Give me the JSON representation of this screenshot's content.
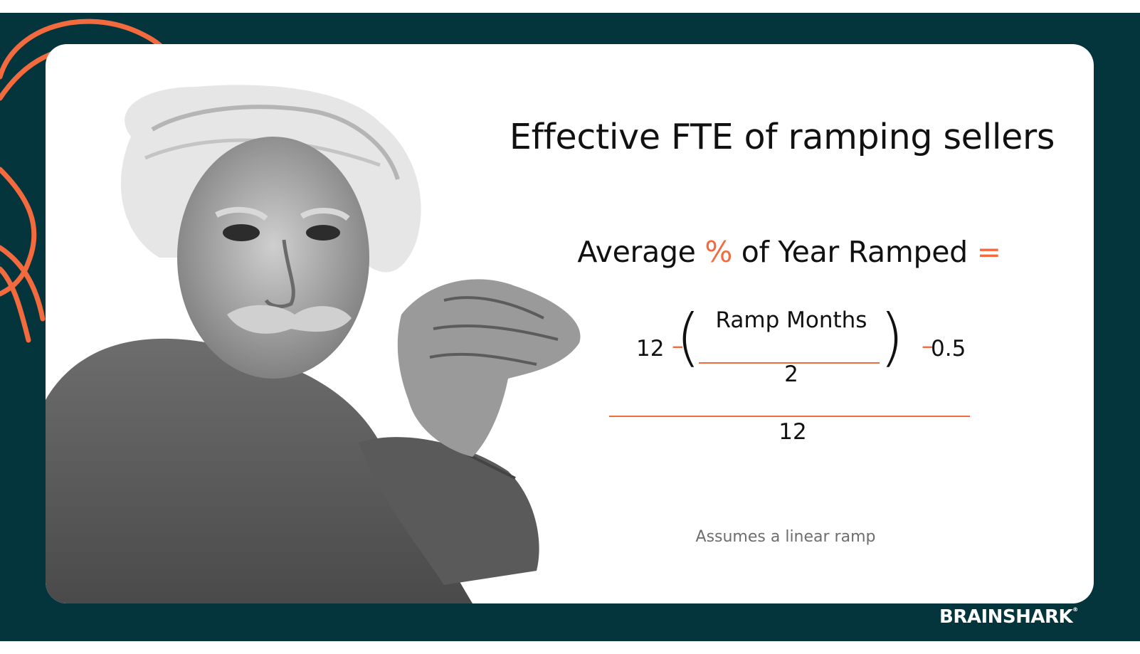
{
  "slide": {
    "title": "Effective FTE of ramping sellers",
    "formula": {
      "lhs_prefix": "Average ",
      "lhs_percent": "%",
      "lhs_suffix": " of Year Ramped ",
      "equals": "=",
      "term_12": "12",
      "minus": "–",
      "open_paren": "(",
      "close_paren": ")",
      "ramp_months": "Ramp Months",
      "divisor_2": "2",
      "minus_half": "0.5",
      "denominator": "12"
    },
    "note": "Assumes a linear ramp",
    "brand": "BRAINSHARK",
    "trademark": "®"
  },
  "colors": {
    "frame": "#04353d",
    "accent": "#f26a3d",
    "card": "#ffffff"
  },
  "illustration": "black-and-white portrait of elderly man with clasped hands"
}
